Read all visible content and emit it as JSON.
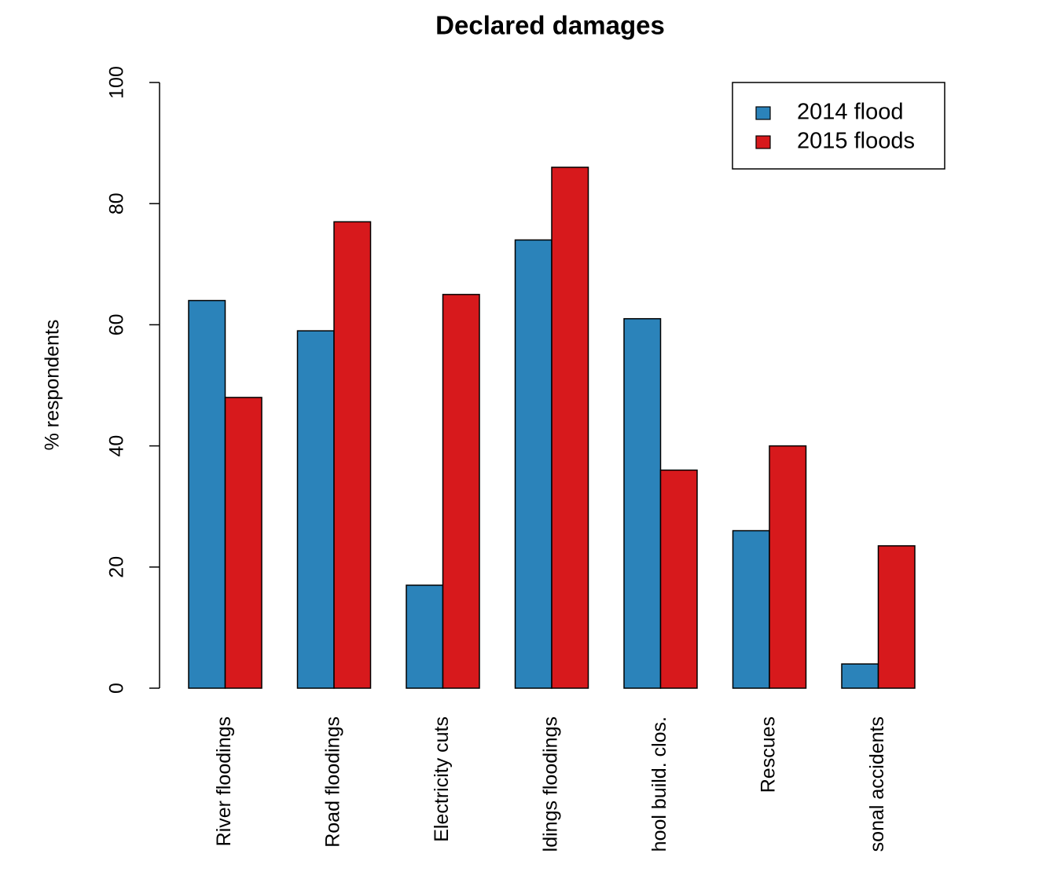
{
  "chart_data": {
    "type": "bar",
    "title": "Declared damages",
    "y_label": "% respondents",
    "categories": [
      "River floodings",
      "Road floodings",
      "Electricity cuts",
      "ldings floodings",
      "hool build. clos.",
      "Rescues",
      "sonal accidents"
    ],
    "series": [
      {
        "name": "2014 flood",
        "color": "#2b83ba",
        "values": [
          64,
          59,
          17,
          74,
          61,
          26,
          4
        ]
      },
      {
        "name": "2015 floods",
        "color": "#d7191c",
        "values": [
          48,
          77,
          65,
          86,
          36,
          40,
          23.5
        ]
      }
    ],
    "ylim": [
      0,
      100
    ],
    "yticks": [
      0,
      20,
      40,
      60,
      80,
      100
    ],
    "legend": "top-right"
  }
}
